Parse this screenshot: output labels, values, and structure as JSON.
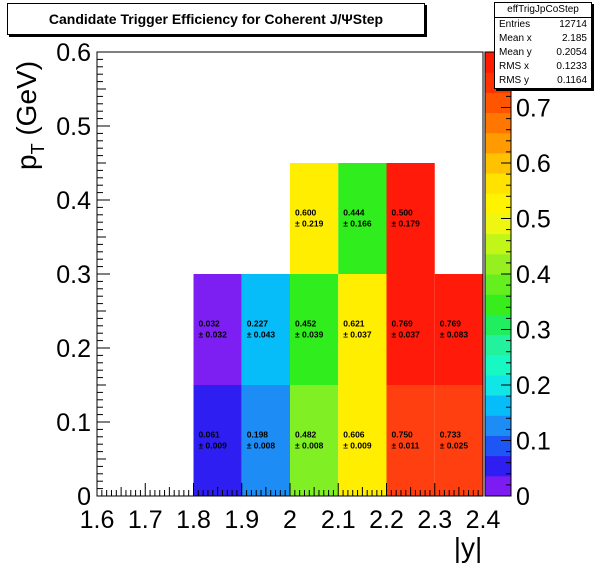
{
  "title": "Candidate Trigger Efficiency for Coherent J/ΨStep",
  "stats": {
    "name": "effTrigJpCoStep",
    "rows": [
      {
        "label": "Entries",
        "value": "12714"
      },
      {
        "label": "Mean x",
        "value": "2.185"
      },
      {
        "label": "Mean y",
        "value": "0.2054"
      },
      {
        "label": "RMS x",
        "value": "0.1233"
      },
      {
        "label": "RMS y",
        "value": "0.1164"
      }
    ]
  },
  "chart_data": {
    "type": "heatmap",
    "title": "Candidate Trigger Efficiency for Coherent J/ΨStep",
    "xlabel": "|y|",
    "ylabel": "p_T (GeV)",
    "xlim": [
      1.6,
      2.4
    ],
    "ylim": [
      0,
      0.6
    ],
    "zlim": [
      0,
      0.8
    ],
    "x_ticks": [
      "1.6",
      "1.7",
      "1.8",
      "1.9",
      "2",
      "2.1",
      "2.2",
      "2.3",
      "2.4"
    ],
    "y_ticks": [
      "0",
      "0.1",
      "0.2",
      "0.3",
      "0.4",
      "0.5",
      "0.6"
    ],
    "z_ticks": [
      "0",
      "0.1",
      "0.2",
      "0.3",
      "0.4",
      "0.5",
      "0.6",
      "0.7"
    ],
    "cells": [
      {
        "x0": 1.8,
        "x1": 1.9,
        "y0": 0.0,
        "y1": 0.15,
        "value": "0.061",
        "error": "± 0.009",
        "color": "#2e1ef2"
      },
      {
        "x0": 1.9,
        "x1": 2.0,
        "y0": 0.0,
        "y1": 0.15,
        "value": "0.198",
        "error": "± 0.008",
        "color": "#1e8cf5"
      },
      {
        "x0": 2.0,
        "x1": 2.1,
        "y0": 0.0,
        "y1": 0.15,
        "value": "0.482",
        "error": "± 0.008",
        "color": "#80f025"
      },
      {
        "x0": 2.1,
        "x1": 2.2,
        "y0": 0.0,
        "y1": 0.15,
        "value": "0.606",
        "error": "± 0.009",
        "color": "#ffee00"
      },
      {
        "x0": 2.2,
        "x1": 2.3,
        "y0": 0.0,
        "y1": 0.15,
        "value": "0.750",
        "error": "± 0.011",
        "color": "#ff3f0f"
      },
      {
        "x0": 2.3,
        "x1": 2.4,
        "y0": 0.0,
        "y1": 0.15,
        "value": "0.733",
        "error": "± 0.025",
        "color": "#ff3f0f"
      },
      {
        "x0": 1.8,
        "x1": 1.9,
        "y0": 0.15,
        "y1": 0.3,
        "value": "0.032",
        "error": "± 0.032",
        "color": "#7d1ff3"
      },
      {
        "x0": 1.9,
        "x1": 2.0,
        "y0": 0.15,
        "y1": 0.3,
        "value": "0.227",
        "error": "± 0.043",
        "color": "#06bdf9"
      },
      {
        "x0": 2.0,
        "x1": 2.1,
        "y0": 0.15,
        "y1": 0.3,
        "value": "0.452",
        "error": "± 0.039",
        "color": "#30ee1e"
      },
      {
        "x0": 2.1,
        "x1": 2.2,
        "y0": 0.15,
        "y1": 0.3,
        "value": "0.621",
        "error": "± 0.037",
        "color": "#ffee00"
      },
      {
        "x0": 2.2,
        "x1": 2.3,
        "y0": 0.15,
        "y1": 0.3,
        "value": "0.769",
        "error": "± 0.037",
        "color": "#ff1a0a"
      },
      {
        "x0": 2.3,
        "x1": 2.4,
        "y0": 0.15,
        "y1": 0.3,
        "value": "0.769",
        "error": "± 0.083",
        "color": "#ff1a0a"
      },
      {
        "x0": 2.0,
        "x1": 2.1,
        "y0": 0.3,
        "y1": 0.45,
        "value": "0.600",
        "error": "± 0.219",
        "color": "#ffee00"
      },
      {
        "x0": 2.1,
        "x1": 2.2,
        "y0": 0.3,
        "y1": 0.45,
        "value": "0.444",
        "error": "± 0.166",
        "color": "#30ee1e"
      },
      {
        "x0": 2.2,
        "x1": 2.3,
        "y0": 0.3,
        "y1": 0.45,
        "value": "0.500",
        "error": "± 0.179",
        "color": "#ff1a0a"
      }
    ],
    "palette": [
      "#7c1cf3",
      "#2e1ef2",
      "#1e56f5",
      "#1e8cf5",
      "#06bdf9",
      "#10e6e6",
      "#18f8c2",
      "#22f19e",
      "#21ee5f",
      "#37ee1c",
      "#66ef1e",
      "#96f01f",
      "#c2f518",
      "#eef612",
      "#fff300",
      "#ffe200",
      "#ffc200",
      "#ff9a00",
      "#ff7700",
      "#ff5500",
      "#ff3300",
      "#ff1a00"
    ]
  }
}
